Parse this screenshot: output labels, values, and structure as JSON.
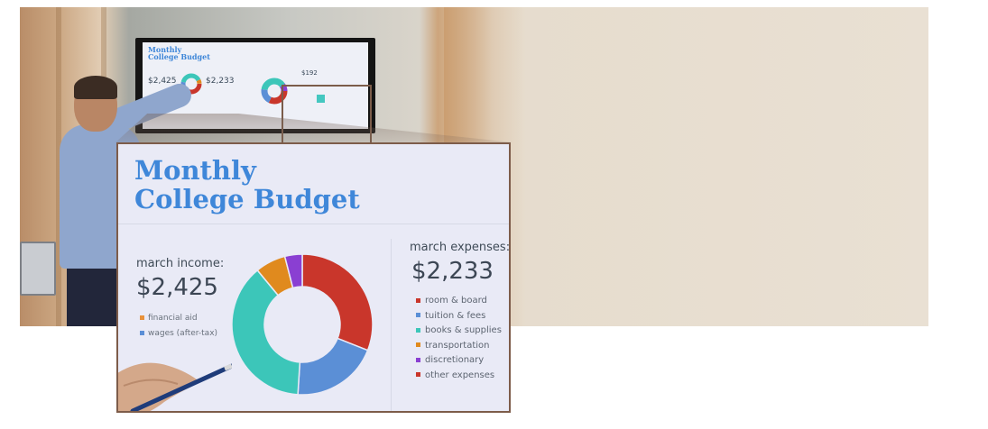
{
  "wall_screen": {
    "title_line1": "Monthly",
    "title_line2": "College Budget",
    "income_amount": "$2,425",
    "expense_amount": "$2,233",
    "other_amount": "$192"
  },
  "inset": {
    "title_line1": "Monthly",
    "title_line2": "College Budget",
    "income": {
      "label": "march income:",
      "amount": "$2,425",
      "items": [
        {
          "label": "financial aid",
          "color": "#e8913a"
        },
        {
          "label": "wages (after-tax)",
          "color": "#5b8fd6"
        }
      ]
    },
    "expenses": {
      "label": "march expenses:",
      "amount": "$2,233",
      "items": [
        {
          "label": "room & board",
          "color": "#c9362b"
        },
        {
          "label": "tuition & fees",
          "color": "#5b8fd6"
        },
        {
          "label": "books & supplies",
          "color": "#3cc6b9"
        },
        {
          "label": "transportation",
          "color": "#e08a1e"
        },
        {
          "label": "discretionary",
          "color": "#8a3fd2"
        },
        {
          "label": "other expenses",
          "color": "#c9362b"
        }
      ]
    }
  },
  "donut": {
    "segments": [
      {
        "name": "room & board",
        "share": 0.31,
        "color": "#c9362b"
      },
      {
        "name": "tuition & fees",
        "share": 0.2,
        "color": "#5b8fd6"
      },
      {
        "name": "books & supplies",
        "share": 0.38,
        "color": "#3cc6b9"
      },
      {
        "name": "transportation",
        "share": 0.07,
        "color": "#e08a1e"
      },
      {
        "name": "discretionary",
        "share": 0.04,
        "color": "#8a3fd2"
      }
    ]
  },
  "colors": {
    "title_blue": "#3f87d9",
    "frame_brown": "#7d5c4a",
    "beige_background": "#e9e0d3"
  }
}
